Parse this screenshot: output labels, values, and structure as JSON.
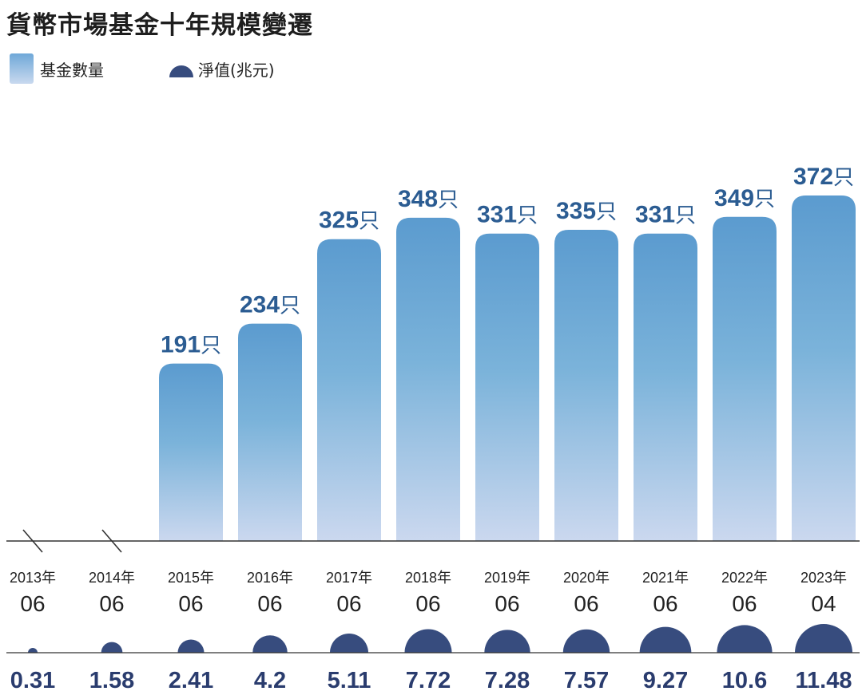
{
  "chart_data": {
    "type": "bar",
    "title": "貨幣市場基金十年規模變遷",
    "categories": [
      {
        "year": "2013年",
        "month": "06"
      },
      {
        "year": "2014年",
        "month": "06"
      },
      {
        "year": "2015年",
        "month": "06"
      },
      {
        "year": "2016年",
        "month": "06"
      },
      {
        "year": "2017年",
        "month": "06"
      },
      {
        "year": "2018年",
        "month": "06"
      },
      {
        "year": "2019年",
        "month": "06"
      },
      {
        "year": "2020年",
        "month": "06"
      },
      {
        "year": "2021年",
        "month": "06"
      },
      {
        "year": "2022年",
        "month": "06"
      },
      {
        "year": "2023年",
        "month": "04"
      }
    ],
    "series": [
      {
        "name": "基金數量",
        "unit": "只",
        "values": [
          null,
          null,
          191,
          234,
          325,
          348,
          331,
          335,
          331,
          349,
          372
        ],
        "missing_marker": "/"
      },
      {
        "name": "淨值(兆元)",
        "values": [
          0.31,
          1.58,
          2.41,
          4.2,
          5.11,
          7.72,
          7.28,
          7.57,
          9.27,
          10.6,
          11.48
        ]
      }
    ],
    "ylim": [
      0,
      400
    ],
    "grid": false,
    "legend_placement": "top-left",
    "colors": {
      "bar_top": "#5b9bcf",
      "bar_mid": "#7bb3da",
      "bar_bottom": "#cbd8ef",
      "bar_label": "#2b5c92",
      "nav_dome": "#374c7e",
      "nav_label": "#2a3c6e",
      "axis": "#333333"
    }
  },
  "legend": {
    "count_label": "基金數量",
    "nav_label": "淨值(兆元)"
  }
}
